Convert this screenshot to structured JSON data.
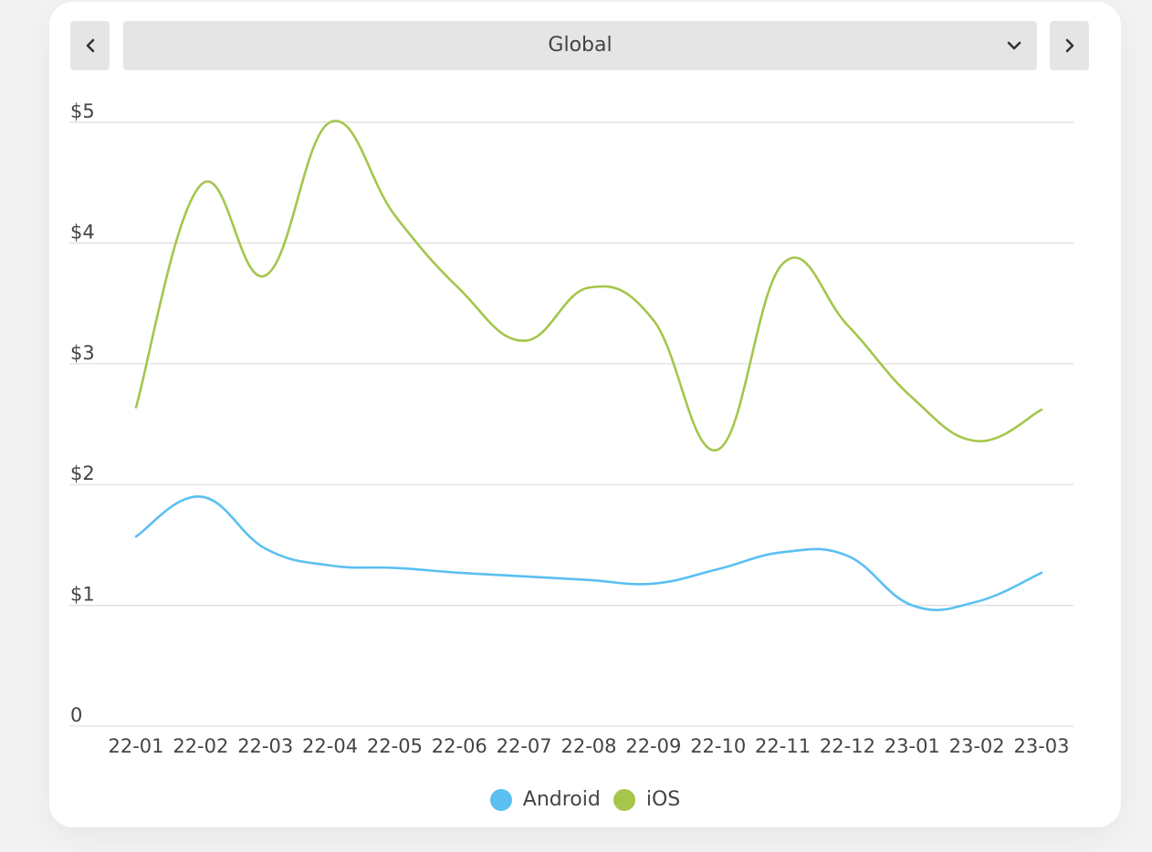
{
  "selector": {
    "value": "Global",
    "prev_icon": "chevron-left-icon",
    "next_icon": "chevron-right-icon",
    "caret_icon": "chevron-down-icon"
  },
  "colors": {
    "Android": "#5ac0f2",
    "iOS": "#a4c64b",
    "grid": "#dddddd",
    "text": "#444444"
  },
  "chart_data": {
    "type": "line",
    "title": "",
    "xlabel": "",
    "ylabel": "",
    "categories": [
      "22-01",
      "22-02",
      "22-03",
      "22-04",
      "22-05",
      "22-06",
      "22-07",
      "22-08",
      "22-09",
      "22-10",
      "22-11",
      "22-12",
      "23-01",
      "23-02",
      "23-03"
    ],
    "y_ticks": [
      0,
      1,
      2,
      3,
      4,
      5
    ],
    "y_tick_labels": [
      "0",
      "$1",
      "$2",
      "$3",
      "$4",
      "$5"
    ],
    "ylim": [
      0,
      5
    ],
    "grid": true,
    "legend_position": "bottom-center",
    "series": [
      {
        "name": "Android",
        "values": [
          1.57,
          1.9,
          1.47,
          1.33,
          1.31,
          1.27,
          1.24,
          1.21,
          1.18,
          1.3,
          1.44,
          1.41,
          1.0,
          1.03,
          1.27
        ]
      },
      {
        "name": "iOS",
        "values": [
          2.64,
          4.48,
          3.73,
          5.0,
          4.23,
          3.62,
          3.19,
          3.63,
          3.36,
          2.29,
          3.83,
          3.32,
          2.72,
          2.36,
          2.62
        ]
      }
    ]
  }
}
